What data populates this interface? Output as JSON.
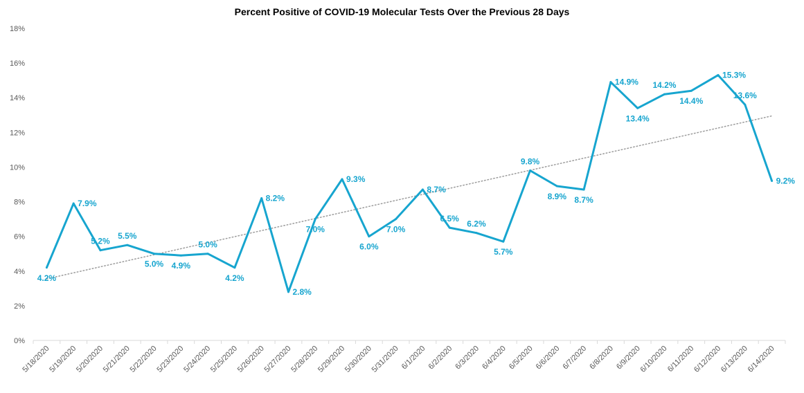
{
  "chart_data": {
    "type": "line",
    "title": "Percent Positive of COVID-19 Molecular Tests Over the Previous 28 Days",
    "xlabel": "",
    "ylabel": "",
    "ylim": [
      0,
      18
    ],
    "y_ticks": [
      "0%",
      "2%",
      "4%",
      "6%",
      "8%",
      "10%",
      "12%",
      "14%",
      "16%",
      "18%"
    ],
    "categories": [
      "5/18/2020",
      "5/19/2020",
      "5/20/2020",
      "5/21/2020",
      "5/22/2020",
      "5/23/2020",
      "5/24/2020",
      "5/25/2020",
      "5/26/2020",
      "5/27/2020",
      "5/28/2020",
      "5/29/2020",
      "5/30/2020",
      "5/31/2020",
      "6/1/2020",
      "6/2/2020",
      "6/3/2020",
      "6/4/2020",
      "6/5/2020",
      "6/6/2020",
      "6/7/2020",
      "6/8/2020",
      "6/9/2020",
      "6/10/2020",
      "6/11/2020",
      "6/12/2020",
      "6/13/2020",
      "6/14/2020"
    ],
    "series": [
      {
        "values": [
          4.2,
          7.9,
          5.2,
          5.5,
          5.0,
          4.9,
          5.0,
          4.2,
          8.2,
          2.8,
          7.0,
          9.3,
          6.0,
          7.0,
          8.7,
          6.5,
          6.2,
          5.7,
          9.8,
          8.9,
          8.7,
          14.9,
          13.4,
          14.2,
          14.4,
          15.3,
          13.6,
          9.2
        ],
        "labels": [
          "4.2%",
          "7.9%",
          "5.2%",
          "5.5%",
          "5.0%",
          "4.9%",
          "5.0%",
          "4.2%",
          "8.2%",
          "2.8%",
          "7.0%",
          "9.3%",
          "6.0%",
          "7.0%",
          "8.7%",
          "6.5%",
          "6.2%",
          "5.7%",
          "9.8%",
          "8.9%",
          "8.7%",
          "14.9%",
          "13.4%",
          "14.2%",
          "14.4%",
          "15.3%",
          "13.6%",
          "9.2%"
        ],
        "label_pos": [
          "below",
          "right",
          "above",
          "above",
          "below",
          "below",
          "above",
          "below",
          "right",
          "right",
          "below",
          "right",
          "below",
          "below",
          "right",
          "above",
          "above",
          "below",
          "above",
          "below",
          "below",
          "right",
          "below",
          "above",
          "below",
          "right",
          "above",
          "right"
        ],
        "color": "#17a5cf"
      }
    ],
    "trendline": {
      "style": "dotted",
      "color": "#9b9b9b",
      "from": [
        0,
        3.55
      ],
      "to": [
        27,
        12.95
      ]
    },
    "grid": false,
    "legend": "none"
  }
}
